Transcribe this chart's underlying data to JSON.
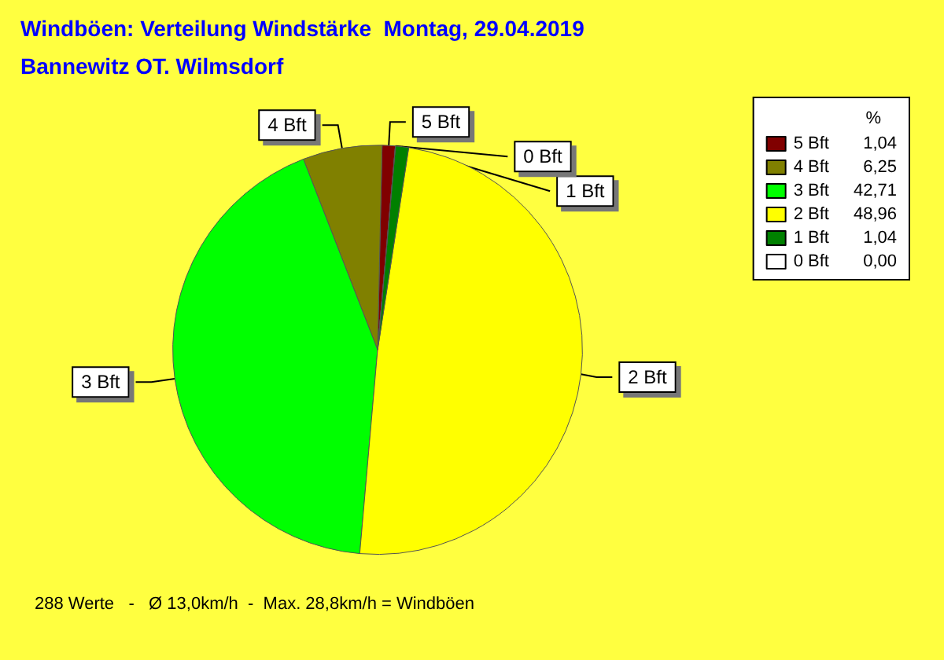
{
  "chart_data": {
    "type": "pie",
    "title": "Windböen: Verteilung Windstärke  Montag, 29.04.2019",
    "subtitle": "Bannewitz OT. Wilmsdorf",
    "categories": [
      "5 Bft",
      "4 Bft",
      "3 Bft",
      "2 Bft",
      "1 Bft",
      "0 Bft"
    ],
    "values": [
      1.04,
      6.25,
      42.71,
      48.96,
      1.04,
      0
    ],
    "value_labels": [
      "1,04",
      "6,25",
      "42,71",
      "48,96",
      "1,04",
      "0,00"
    ],
    "colors": [
      "#800000",
      "#808000",
      "#00ff00",
      "#ffff00",
      "#008000",
      "#ffffff"
    ],
    "legend": "top right",
    "legend_title": "%",
    "annotations": [
      "288 Werte   -   Ø 13,0km/h  -  Max. 28,8km/h = Windböen"
    ]
  }
}
